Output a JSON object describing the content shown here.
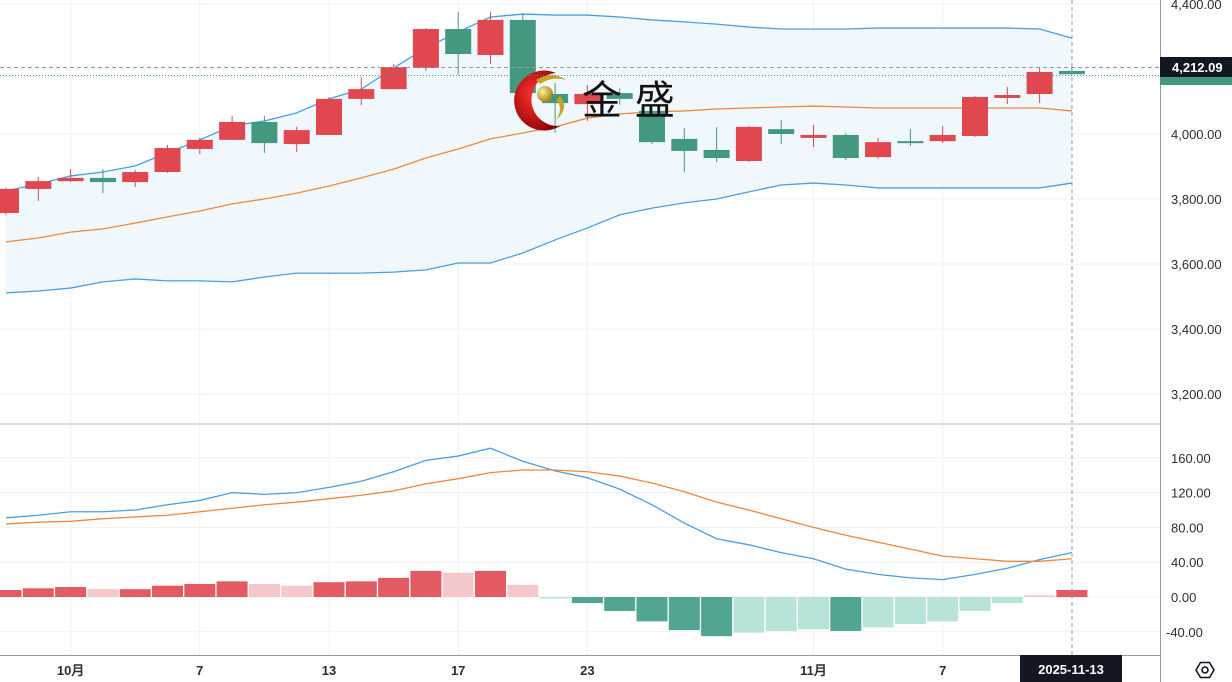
{
  "logo": {
    "text": "金 盛"
  },
  "crosshair": {
    "price_label": "4,212.09",
    "date_label": "2025-11-13"
  },
  "colors": {
    "up": "#e0474f",
    "down": "#459880",
    "hist_up_strong": "#e35a63",
    "hist_up_weak": "#f5c9cc",
    "hist_down_strong": "#52a591",
    "hist_down_weak": "#b8e3d8",
    "bb_band": "#4a9fe0",
    "bb_mid": "#f0883a",
    "bb_fill": "#f1f8fd",
    "dif": "#4a9fe0",
    "dea": "#f0883a",
    "tag_bg": "#131722"
  },
  "icons": {
    "settings": "settings-hexagon-icon"
  },
  "chart_data": [
    {
      "type": "candlestick",
      "indicators": [
        "bollinger_bands"
      ],
      "grid": true,
      "yaxis_ticks": [
        "4,400.00",
        "4,000.00",
        "3,800.00",
        "3,600.00",
        "3,400.00",
        "3,200.00"
      ],
      "yaxis_tick_values": [
        4400,
        4000,
        3800,
        3600,
        3400,
        3200
      ],
      "ylim": [
        3170,
        4412
      ],
      "candles": [
        {
          "date": "2025-09-29",
          "o": 3757,
          "h": 3835,
          "l": 3750,
          "c": 3831
        },
        {
          "date": "2025-09-30",
          "o": 3831,
          "h": 3868,
          "l": 3794,
          "c": 3855
        },
        {
          "date": "2025-10-01",
          "o": 3855,
          "h": 3892,
          "l": 3852,
          "c": 3865
        },
        {
          "date": "2025-10-02",
          "o": 3865,
          "h": 3892,
          "l": 3818,
          "c": 3852
        },
        {
          "date": "2025-10-03",
          "o": 3852,
          "h": 3889,
          "l": 3837,
          "c": 3883
        },
        {
          "date": "2025-10-06",
          "o": 3883,
          "h": 3966,
          "l": 3880,
          "c": 3957
        },
        {
          "date": "2025-10-07",
          "o": 3954,
          "h": 3988,
          "l": 3938,
          "c": 3982
        },
        {
          "date": "2025-10-08",
          "o": 3982,
          "h": 4055,
          "l": 3982,
          "c": 4037
        },
        {
          "date": "2025-10-09",
          "o": 4037,
          "h": 4055,
          "l": 3942,
          "c": 3972
        },
        {
          "date": "2025-10-10",
          "o": 3969,
          "h": 4022,
          "l": 3945,
          "c": 4012
        },
        {
          "date": "2025-10-13",
          "o": 3997,
          "h": 4114,
          "l": 3997,
          "c": 4108
        },
        {
          "date": "2025-10-14",
          "o": 4108,
          "h": 4175,
          "l": 4089,
          "c": 4138
        },
        {
          "date": "2025-10-15",
          "o": 4138,
          "h": 4215,
          "l": 4138,
          "c": 4206
        },
        {
          "date": "2025-10-16",
          "o": 4203,
          "h": 4326,
          "l": 4194,
          "c": 4323
        },
        {
          "date": "2025-10-17",
          "o": 4323,
          "h": 4375,
          "l": 4182,
          "c": 4246
        },
        {
          "date": "2025-10-20",
          "o": 4243,
          "h": 4375,
          "l": 4215,
          "c": 4351
        },
        {
          "date": "2025-10-21",
          "o": 4351,
          "h": 4372,
          "l": 4110,
          "c": 4126
        },
        {
          "date": "2025-10-22",
          "o": 4123,
          "h": 4157,
          "l": 4003,
          "c": 4095
        },
        {
          "date": "2025-10-23",
          "o": 4092,
          "h": 4151,
          "l": 4040,
          "c": 4123
        },
        {
          "date": "2025-10-24",
          "o": 4126,
          "h": 4140,
          "l": 4090,
          "c": 4108
        },
        {
          "date": "2025-10-27",
          "o": 4071,
          "h": 4078,
          "l": 3969,
          "c": 3975
        },
        {
          "date": "2025-10-28",
          "o": 3985,
          "h": 4018,
          "l": 3883,
          "c": 3948
        },
        {
          "date": "2025-10-29",
          "o": 3951,
          "h": 4021,
          "l": 3914,
          "c": 3926
        },
        {
          "date": "2025-10-30",
          "o": 3917,
          "h": 4025,
          "l": 3914,
          "c": 4022
        },
        {
          "date": "2025-10-31",
          "o": 4015,
          "h": 4043,
          "l": 3969,
          "c": 4000
        },
        {
          "date": "2025-11-03",
          "o": 3988,
          "h": 4028,
          "l": 3960,
          "c": 3997
        },
        {
          "date": "2025-11-04",
          "o": 3997,
          "h": 4003,
          "l": 3920,
          "c": 3926
        },
        {
          "date": "2025-11-05",
          "o": 3929,
          "h": 3988,
          "l": 3923,
          "c": 3975
        },
        {
          "date": "2025-11-06",
          "o": 3978,
          "h": 4015,
          "l": 3963,
          "c": 3972
        },
        {
          "date": "2025-11-07",
          "o": 3978,
          "h": 4025,
          "l": 3972,
          "c": 3997
        },
        {
          "date": "2025-11-10",
          "o": 3994,
          "h": 4117,
          "l": 3991,
          "c": 4114
        },
        {
          "date": "2025-11-11",
          "o": 4111,
          "h": 4145,
          "l": 4092,
          "c": 4120
        },
        {
          "date": "2025-11-12",
          "o": 4123,
          "h": 4206,
          "l": 4095,
          "c": 4191
        },
        {
          "date": "2025-11-13",
          "o": 4194,
          "h": 4206,
          "l": 4180,
          "c": 4184
        }
      ],
      "bollinger": {
        "upper": [
          3825,
          3846,
          3871,
          3883,
          3902,
          3942,
          3982,
          4025,
          4040,
          4065,
          4108,
          4138,
          4203,
          4265,
          4314,
          4360,
          4369,
          4366,
          4366,
          4360,
          4351,
          4345,
          4338,
          4329,
          4323,
          4323,
          4323,
          4326,
          4326,
          4326,
          4326,
          4326,
          4323,
          4295
        ],
        "middle": [
          3668,
          3680,
          3698,
          3708,
          3726,
          3745,
          3763,
          3785,
          3800,
          3818,
          3840,
          3865,
          3892,
          3926,
          3954,
          3985,
          4003,
          4022,
          4049,
          4062,
          4068,
          4071,
          4077,
          4080,
          4083,
          4086,
          4083,
          4080,
          4080,
          4080,
          4080,
          4080,
          4080,
          4071
        ],
        "lower": [
          3511,
          3517,
          3526,
          3545,
          3554,
          3548,
          3548,
          3545,
          3560,
          3572,
          3572,
          3572,
          3575,
          3582,
          3603,
          3603,
          3634,
          3674,
          3711,
          3751,
          3772,
          3788,
          3800,
          3822,
          3843,
          3849,
          3843,
          3834,
          3834,
          3834,
          3834,
          3834,
          3834,
          3849
        ]
      }
    },
    {
      "type": "macd",
      "grid": true,
      "yaxis_ticks": [
        "160.00",
        "120.00",
        "80.00",
        "40.00",
        "0.00",
        "-40.00"
      ],
      "yaxis_tick_values": [
        160,
        120,
        80,
        40,
        0,
        -40
      ],
      "dif": [
        91,
        94,
        98,
        98,
        100,
        106,
        111,
        120,
        118,
        120,
        126,
        133,
        144,
        157,
        162,
        171,
        156,
        145,
        137,
        124,
        106,
        85,
        67,
        60,
        51,
        44,
        32,
        26,
        22,
        20,
        26,
        33,
        43,
        51
      ],
      "dea": [
        84,
        86,
        87,
        90,
        92,
        94,
        98,
        102,
        106,
        109,
        113,
        117,
        122,
        130,
        136,
        143,
        146,
        146,
        144,
        139,
        131,
        121,
        109,
        100,
        90,
        80,
        71,
        63,
        55,
        47,
        44,
        41,
        41,
        44
      ],
      "histogram": [
        8,
        10,
        11.5,
        9,
        9,
        13,
        15,
        18,
        15,
        13,
        17,
        18,
        22,
        30,
        28,
        30,
        14,
        -1,
        -7,
        -16,
        -28,
        -38,
        -45,
        -41,
        -39,
        -37,
        -39,
        -35,
        -31,
        -28,
        -16,
        -7,
        2,
        8
      ]
    }
  ],
  "xaxis": {
    "ticks": [
      {
        "label": "10月",
        "index": 2
      },
      {
        "label": "7",
        "index": 6
      },
      {
        "label": "13",
        "index": 10
      },
      {
        "label": "17",
        "index": 14
      },
      {
        "label": "23",
        "index": 18
      },
      {
        "label": "11月",
        "index": 25
      },
      {
        "label": "7",
        "index": 29
      }
    ]
  }
}
